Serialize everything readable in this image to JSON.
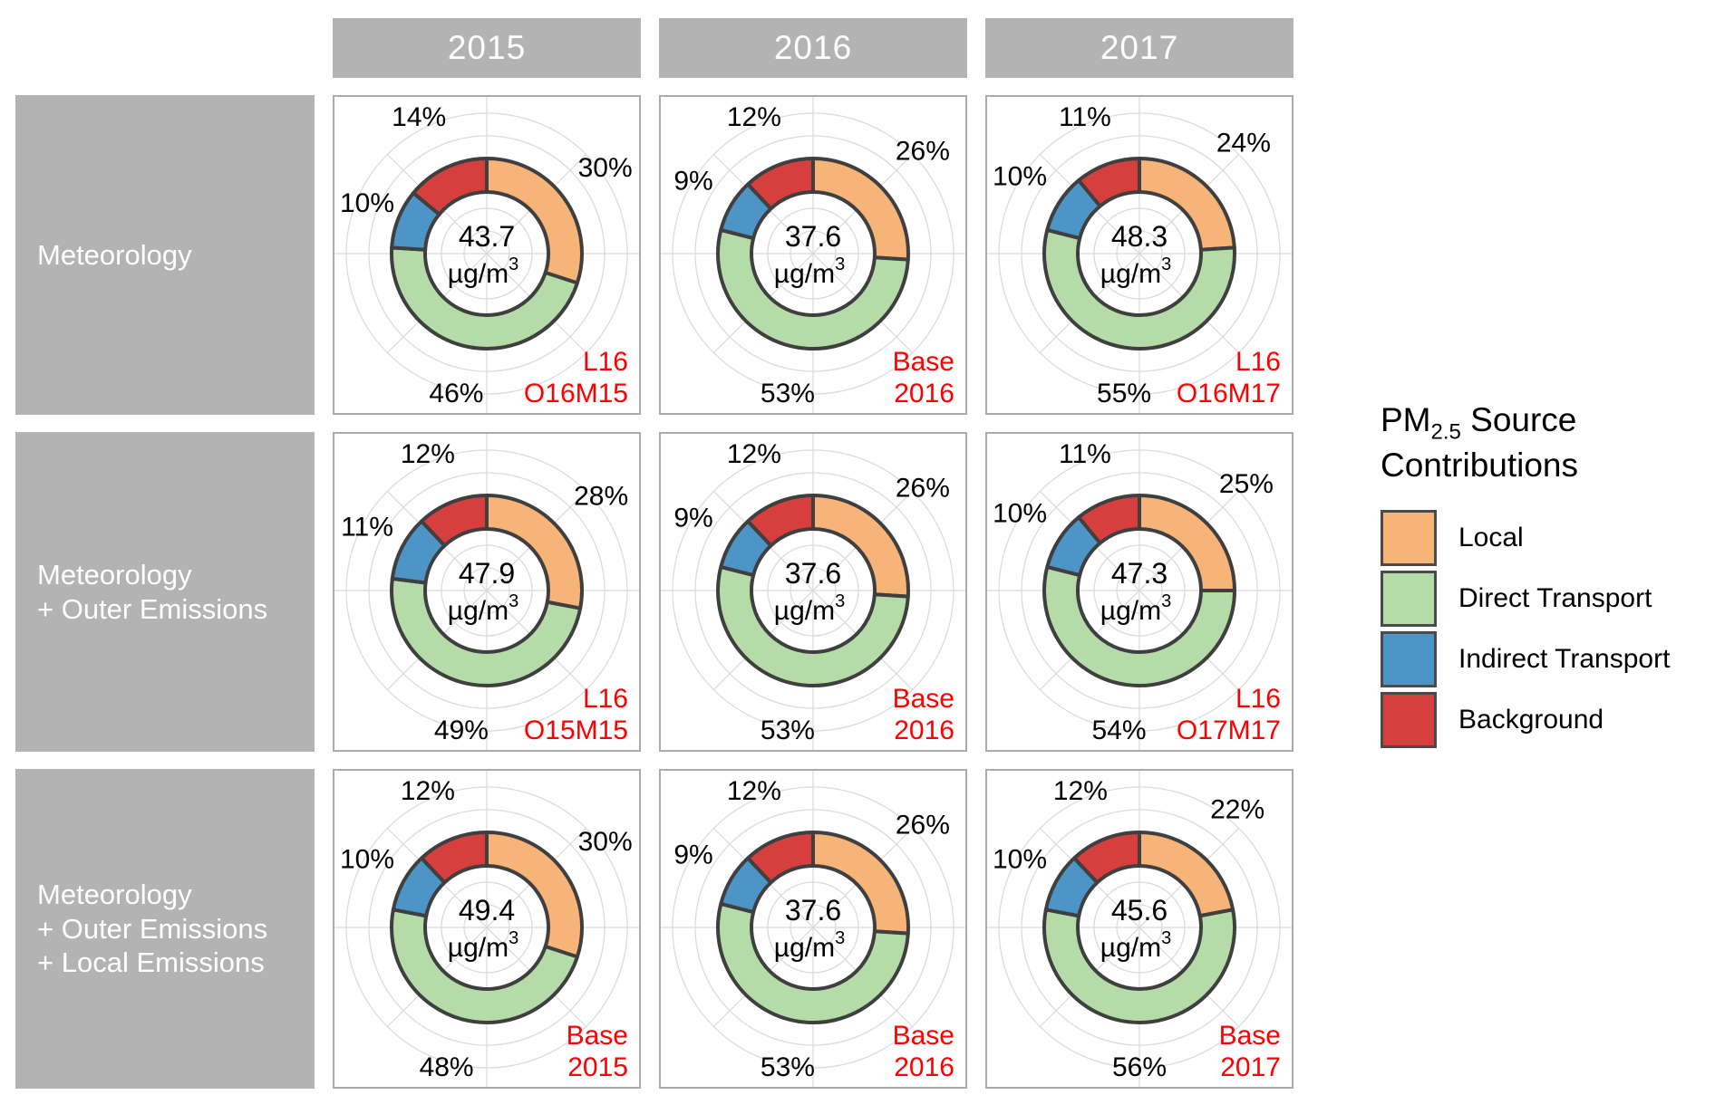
{
  "columns": [
    "2015",
    "2016",
    "2017"
  ],
  "rows": [
    {
      "label_lines": [
        "Meteorology"
      ]
    },
    {
      "label_lines": [
        "Meteorology",
        "+ Outer Emissions"
      ]
    },
    {
      "label_lines": [
        "Meteorology",
        "+ Outer Emissions",
        "+ Local Emissions"
      ]
    }
  ],
  "legend": {
    "title_pm": "PM",
    "title_sub": "2.5",
    "title_rest": " Source",
    "title_line2": "Contributions",
    "items": [
      {
        "label": "Local",
        "color": "#F6B478"
      },
      {
        "label": "Direct Transport",
        "color": "#B5DCA8"
      },
      {
        "label": "Indirect Transport",
        "color": "#4D95C6"
      },
      {
        "label": "Background",
        "color": "#D73E3E"
      }
    ]
  },
  "chart_data": {
    "type": "donut-grid",
    "unit_line": "µg/m",
    "unit_sup": "3",
    "categories": [
      "Local",
      "Direct Transport",
      "Indirect Transport",
      "Background"
    ],
    "colors": [
      "#F6B478",
      "#B5DCA8",
      "#4D95C6",
      "#D73E3E"
    ],
    "segment_stroke": "#3F3F3F",
    "grid_color": "#DBDBDB",
    "annotation_color": "#FF0000",
    "columns": [
      "2015",
      "2016",
      "2017"
    ],
    "row_labels": [
      "Meteorology",
      "Meteorology + Outer Emissions",
      "Meteorology + Outer Emissions + Local Emissions"
    ],
    "cells": [
      [
        {
          "center_value": "43.7",
          "values_pct": [
            30,
            46,
            10,
            14
          ],
          "annotation": [
            "L16",
            "O16M15"
          ]
        },
        {
          "center_value": "37.6",
          "values_pct": [
            26,
            53,
            9,
            12
          ],
          "annotation": [
            "Base",
            "2016"
          ]
        },
        {
          "center_value": "48.3",
          "values_pct": [
            24,
            55,
            10,
            11
          ],
          "annotation": [
            "L16",
            "O16M17"
          ]
        }
      ],
      [
        {
          "center_value": "47.9",
          "values_pct": [
            28,
            49,
            11,
            12
          ],
          "annotation": [
            "L16",
            "O15M15"
          ]
        },
        {
          "center_value": "37.6",
          "values_pct": [
            26,
            53,
            9,
            12
          ],
          "annotation": [
            "Base",
            "2016"
          ]
        },
        {
          "center_value": "47.3",
          "values_pct": [
            25,
            54,
            10,
            11
          ],
          "annotation": [
            "L16",
            "O17M17"
          ]
        }
      ],
      [
        {
          "center_value": "49.4",
          "values_pct": [
            30,
            48,
            10,
            12
          ],
          "annotation": [
            "Base",
            "2015"
          ]
        },
        {
          "center_value": "37.6",
          "values_pct": [
            26,
            53,
            9,
            12
          ],
          "annotation": [
            "Base",
            "2016"
          ]
        },
        {
          "center_value": "45.6",
          "values_pct": [
            22,
            56,
            10,
            12
          ],
          "annotation": [
            "Base",
            "2017"
          ]
        }
      ]
    ]
  }
}
